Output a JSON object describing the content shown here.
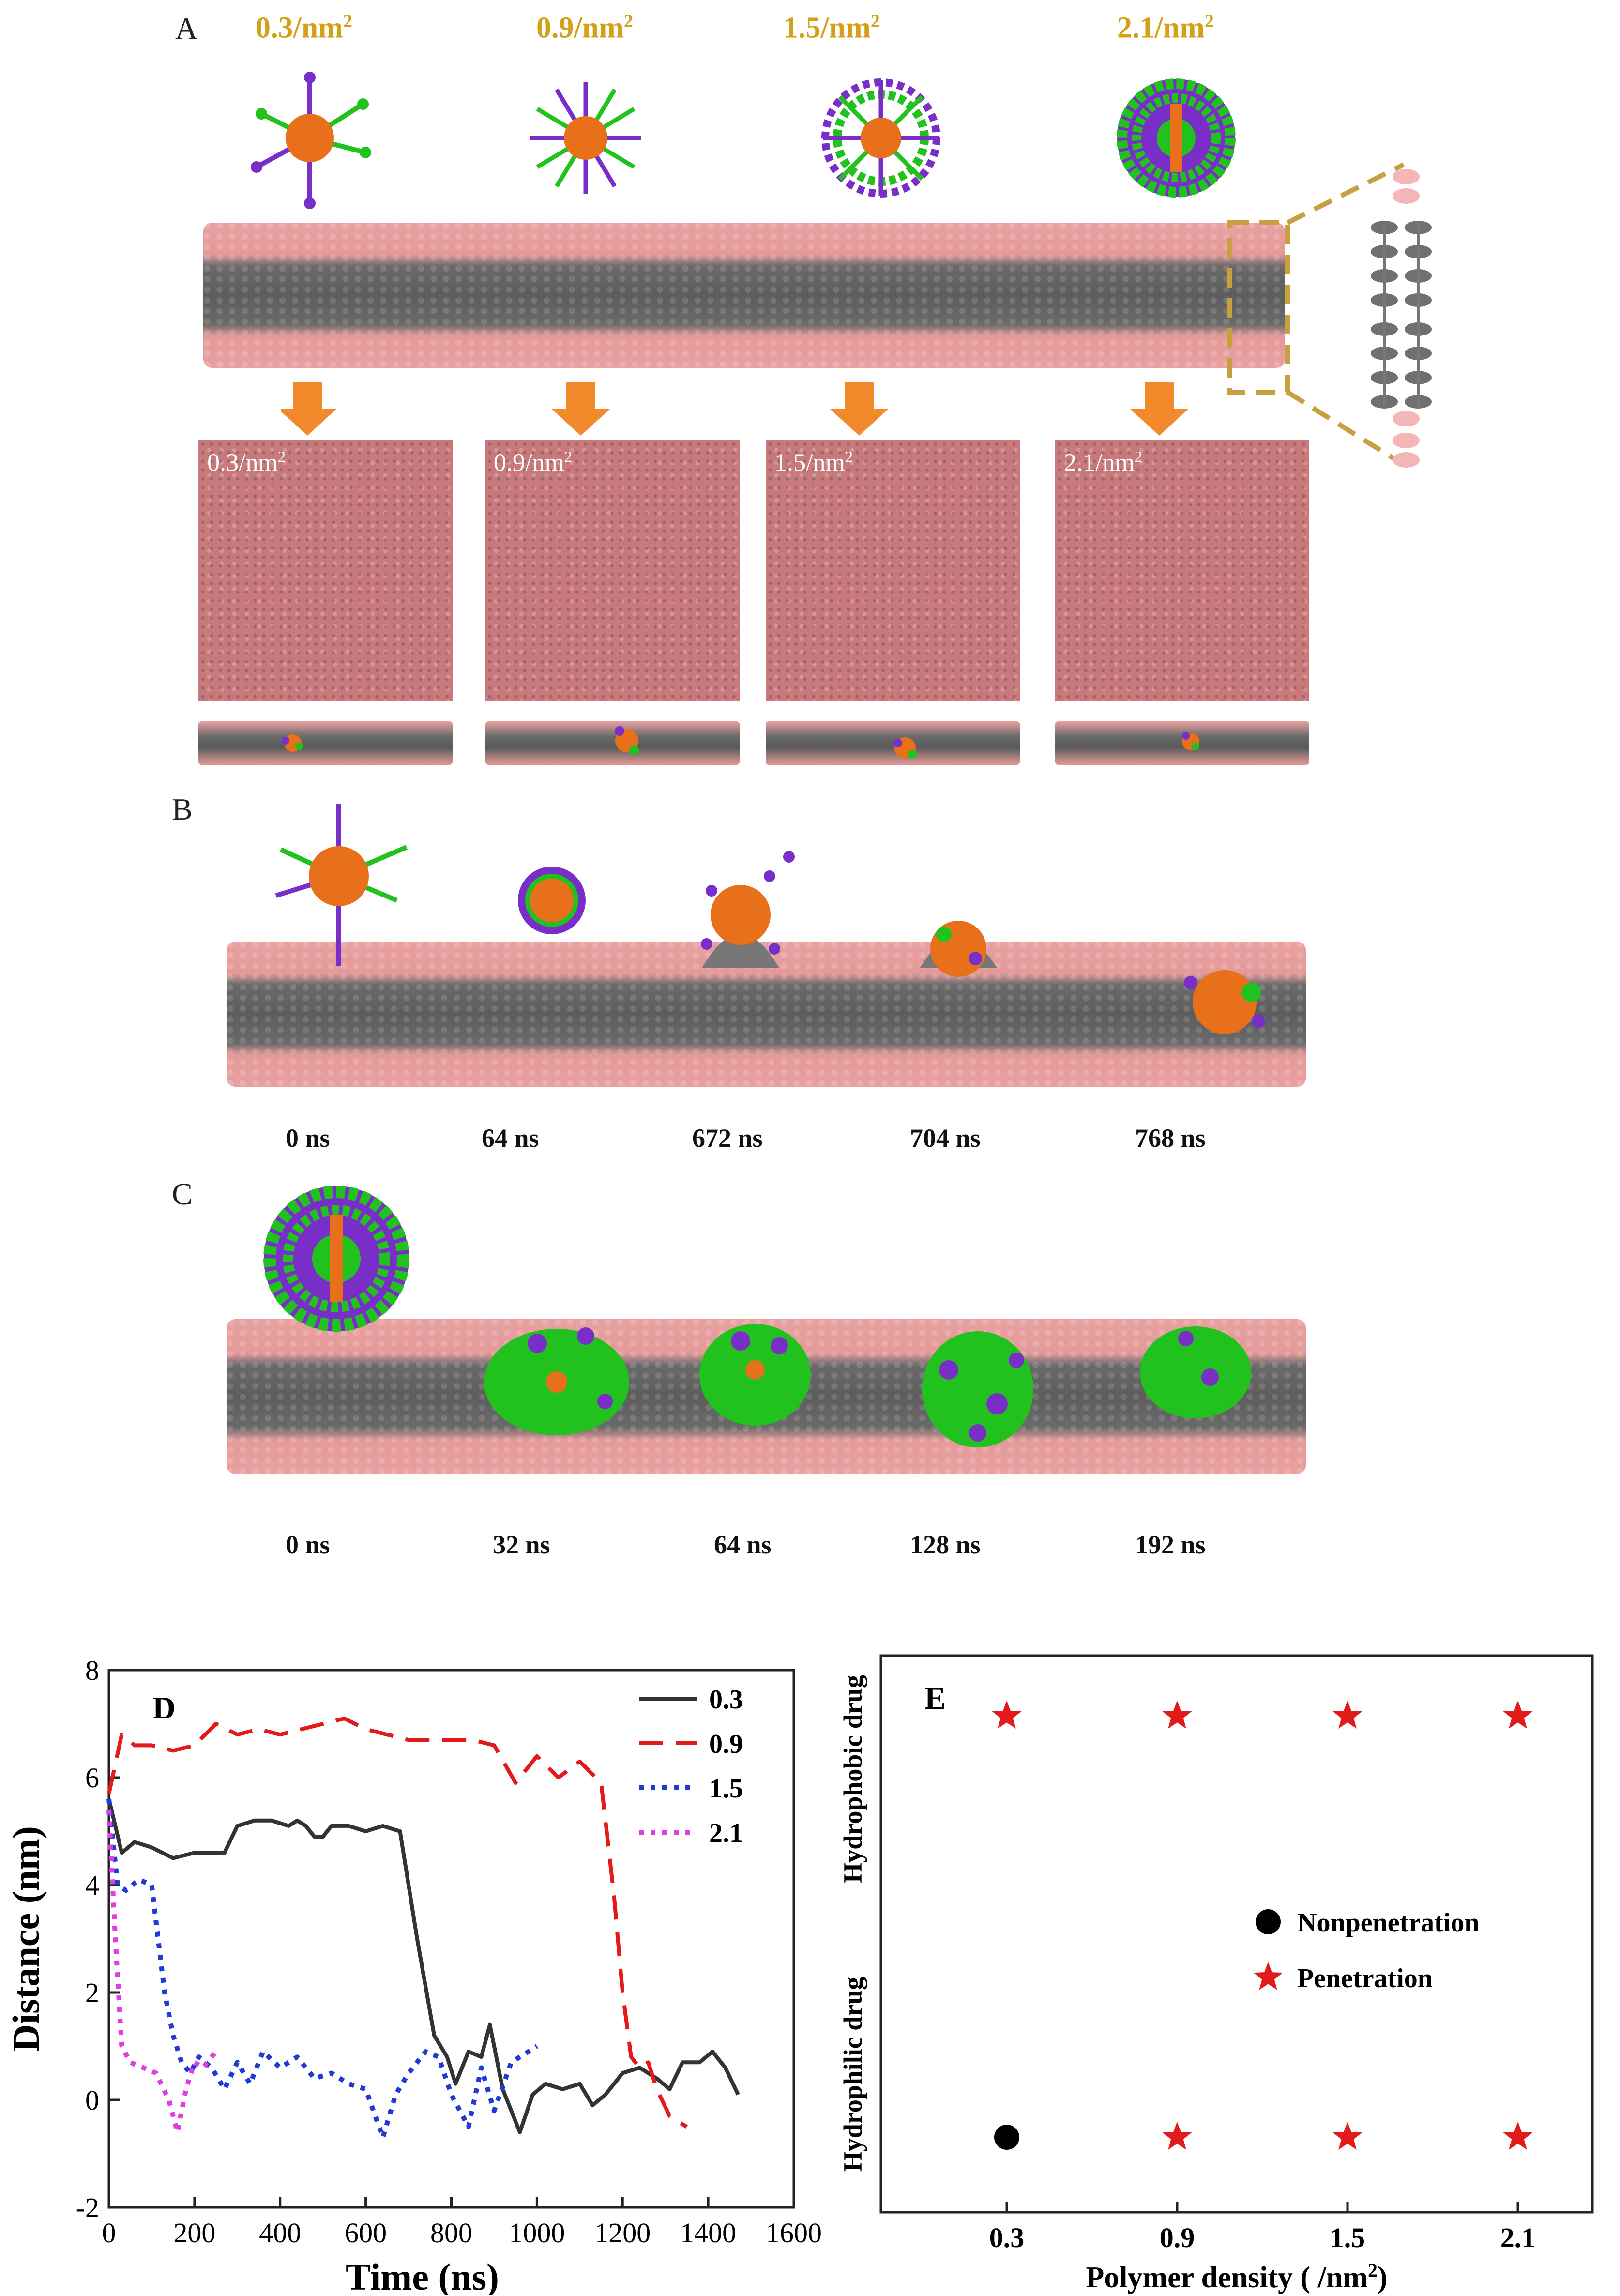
{
  "panel_a": {
    "letter": "A",
    "densities": [
      {
        "value": "0.3/nm",
        "exp": "2"
      },
      {
        "value": "0.9/nm",
        "exp": "2"
      },
      {
        "value": "1.5/nm",
        "exp": "2"
      },
      {
        "value": "2.1/nm",
        "exp": "2"
      }
    ],
    "square_labels": [
      {
        "value": "0.3/nm",
        "exp": "2"
      },
      {
        "value": "0.9/nm",
        "exp": "2"
      },
      {
        "value": "1.5/nm",
        "exp": "2"
      },
      {
        "value": "2.1/nm",
        "exp": "2"
      }
    ]
  },
  "panel_b": {
    "letter": "B",
    "times": [
      "0 ns",
      "64 ns",
      "672 ns",
      "704 ns",
      "768 ns"
    ]
  },
  "panel_c": {
    "letter": "C",
    "times": [
      "0 ns",
      "32 ns",
      "64 ns",
      "128 ns",
      "192 ns"
    ]
  },
  "colors": {
    "lipid_head": "#e9a0a0",
    "lipid_tail": "#5d5d5d",
    "np_core": "#e8701a",
    "polymer_purple": "#7a2ec8",
    "polymer_green": "#22c21e",
    "density_label": "#d4a017",
    "arrow": "#f28a2c",
    "line_03": "#333333",
    "line_09": "#e31a1c",
    "line_15": "#1f3bd6",
    "line_21": "#e03fe0",
    "star": "#e31a1c"
  },
  "chart_data": [
    {
      "type": "line",
      "panel_letter": "D",
      "xlabel": "Time (ns)",
      "ylabel": "Distance (nm)",
      "xlim": [
        0,
        1600
      ],
      "ylim": [
        -2,
        8
      ],
      "xticks": [
        "0",
        "200",
        "400",
        "600",
        "800",
        "1000",
        "1200",
        "1400",
        "1600"
      ],
      "yticks": [
        "-2",
        "0",
        "2",
        "4",
        "6",
        "8"
      ],
      "legend_position": "top-right",
      "series": [
        {
          "name": "0.3",
          "style": "solid",
          "color": "#333333",
          "x": [
            0,
            30,
            60,
            100,
            150,
            200,
            240,
            270,
            300,
            340,
            380,
            420,
            440,
            460,
            480,
            500,
            520,
            560,
            600,
            640,
            680,
            720,
            760,
            790,
            810,
            840,
            870,
            890,
            920,
            960,
            990,
            1020,
            1060,
            1100,
            1130,
            1160,
            1200,
            1240,
            1280,
            1310,
            1340,
            1380,
            1410,
            1440,
            1470
          ],
          "y": [
            5.6,
            4.6,
            4.8,
            4.7,
            4.5,
            4.6,
            4.6,
            4.6,
            5.1,
            5.2,
            5.2,
            5.1,
            5.2,
            5.1,
            4.9,
            4.9,
            5.1,
            5.1,
            5.0,
            5.1,
            5.0,
            3.0,
            1.2,
            0.8,
            0.3,
            0.9,
            0.8,
            1.4,
            0.2,
            -0.6,
            0.1,
            0.3,
            0.2,
            0.3,
            -0.1,
            0.1,
            0.5,
            0.6,
            0.4,
            0.2,
            0.7,
            0.7,
            0.9,
            0.6,
            0.1
          ]
        },
        {
          "name": "0.9",
          "style": "dashed",
          "color": "#e31a1c",
          "x": [
            0,
            30,
            60,
            100,
            150,
            200,
            250,
            300,
            350,
            400,
            450,
            500,
            550,
            600,
            650,
            700,
            750,
            800,
            850,
            900,
            950,
            1000,
            1050,
            1100,
            1150,
            1180,
            1200,
            1220,
            1240,
            1260,
            1280,
            1310,
            1330,
            1350
          ],
          "y": [
            5.7,
            6.8,
            6.6,
            6.6,
            6.5,
            6.6,
            7.0,
            6.8,
            6.9,
            6.8,
            6.9,
            7.0,
            7.1,
            6.9,
            6.8,
            6.7,
            6.7,
            6.7,
            6.7,
            6.6,
            5.9,
            6.4,
            6.0,
            6.3,
            5.9,
            3.8,
            2.0,
            0.8,
            0.6,
            0.7,
            0.2,
            -0.3,
            -0.4,
            -0.5
          ]
        },
        {
          "name": "1.5",
          "style": "dotted",
          "color": "#1f3bd6",
          "x": [
            0,
            20,
            40,
            70,
            100,
            130,
            150,
            170,
            190,
            210,
            240,
            270,
            300,
            330,
            360,
            400,
            440,
            480,
            520,
            560,
            600,
            640,
            670,
            700,
            740,
            770,
            800,
            840,
            870,
            900,
            940,
            980,
            1000
          ],
          "y": [
            5.6,
            4.0,
            3.9,
            4.1,
            4.0,
            2.0,
            1.2,
            0.7,
            0.5,
            0.8,
            0.6,
            0.2,
            0.7,
            0.3,
            0.9,
            0.6,
            0.8,
            0.4,
            0.5,
            0.3,
            0.2,
            -0.7,
            0.1,
            0.5,
            0.9,
            0.8,
            0.1,
            -0.5,
            0.6,
            -0.2,
            0.7,
            0.9,
            1.0
          ]
        },
        {
          "name": "2.1",
          "style": "dotted",
          "color": "#e03fe0",
          "x": [
            0,
            15,
            30,
            50,
            80,
            110,
            140,
            160,
            180,
            200,
            220,
            250
          ],
          "y": [
            5.4,
            3.0,
            1.0,
            0.7,
            0.6,
            0.5,
            0.0,
            -0.6,
            0.2,
            0.7,
            0.6,
            0.9
          ]
        }
      ]
    },
    {
      "type": "scatter",
      "panel_letter": "E",
      "xlabel": "Polymer density ( /nm",
      "xlabel_exp": "2",
      "xlabel_close": ")",
      "categories": [
        "0.3",
        "0.9",
        "1.5",
        "2.1"
      ],
      "y_categories": [
        "Hydrophilic drug",
        "Hydrophobic drug"
      ],
      "legend_position": "center-right",
      "legend": [
        {
          "name": "Nonpenetration",
          "marker": "circle"
        },
        {
          "name": "Penetration",
          "marker": "star"
        }
      ],
      "points": [
        {
          "x": "0.3",
          "y": "Hydrophobic drug",
          "marker": "star"
        },
        {
          "x": "0.9",
          "y": "Hydrophobic drug",
          "marker": "star"
        },
        {
          "x": "1.5",
          "y": "Hydrophobic drug",
          "marker": "star"
        },
        {
          "x": "2.1",
          "y": "Hydrophobic drug",
          "marker": "star"
        },
        {
          "x": "0.3",
          "y": "Hydrophilic drug",
          "marker": "circle"
        },
        {
          "x": "0.9",
          "y": "Hydrophilic drug",
          "marker": "star"
        },
        {
          "x": "1.5",
          "y": "Hydrophilic drug",
          "marker": "star"
        },
        {
          "x": "2.1",
          "y": "Hydrophilic drug",
          "marker": "star"
        }
      ]
    }
  ]
}
